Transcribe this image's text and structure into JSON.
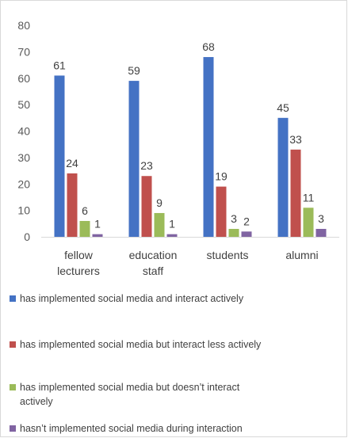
{
  "chart_data": {
    "type": "bar",
    "title": "",
    "xlabel": "",
    "ylabel": "",
    "ylim": [
      0,
      80
    ],
    "yticks": [
      0,
      10,
      20,
      30,
      40,
      50,
      60,
      70,
      80
    ],
    "grid": false,
    "legend_position": "bottom",
    "categories": [
      [
        "fellow",
        "lecturers"
      ],
      [
        "education",
        "staff"
      ],
      [
        "students"
      ],
      [
        "alumni"
      ]
    ],
    "series": [
      {
        "name": "has implemented social media and interact actively",
        "color": "#4472c4",
        "values": [
          61,
          59,
          68,
          45
        ]
      },
      {
        "name": "has implemented social media but interact less actively",
        "color": "#c0504d",
        "values": [
          24,
          23,
          19,
          33
        ]
      },
      {
        "name": "has implemented social media but doesn’t interact actively",
        "color": "#9bbb59",
        "values": [
          6,
          9,
          3,
          11
        ]
      },
      {
        "name": "hasn’t implemented social media during interaction",
        "color": "#8064a2",
        "values": [
          1,
          1,
          2,
          3
        ]
      }
    ]
  }
}
